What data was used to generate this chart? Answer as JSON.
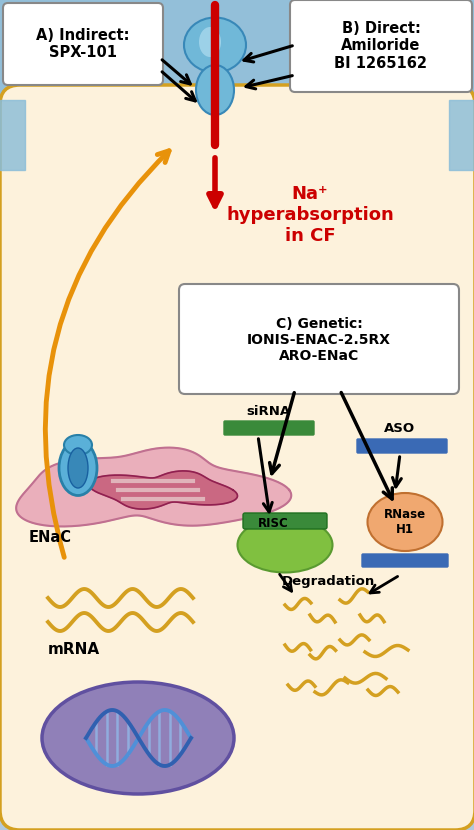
{
  "fig_width": 4.74,
  "fig_height": 8.3,
  "dpi": 100,
  "bg_outer": "#b0c8dc",
  "bg_cell": "#fdf2dc",
  "bg_cell_border": "#d4a020",
  "bg_membrane": "#88bcd8",
  "label_A_text": "A) Indirect:\nSPX-101",
  "label_B_text": "B) Direct:\nAmiloride\nBI 1265162",
  "label_C_text": "C) Genetic:\nIONIS-ENAC-2.5RX\nARO-ENaC",
  "na_text": "Na⁺\nhyperabsorption\nin CF",
  "na_color": "#cc0000",
  "enac_label": "ENaC",
  "mrna_label": "mRNA",
  "sirna_label": "siRNA",
  "aso_label": "ASO",
  "risc_label": "RISC",
  "degradation_label": "Degradation",
  "rnase_label": "RNase\nH1",
  "arrow_red": "#cc0000",
  "arrow_orange": "#e8920a",
  "siRNA_color": "#3a8a3a",
  "ASO_color": "#3a6ab5",
  "RISC_fill": "#a8d870",
  "RISC_oval": "#80c040",
  "RNase_fill": "#f0a870",
  "nucleus_fill": "#9080b8",
  "nucleus_border": "#6050a0",
  "DNA_color1": "#5090d8",
  "DNA_color2": "#3060b0",
  "enac_outer_color": "#e8a8b8",
  "enac_inner_color": "#c05070",
  "enac_channel_color": "#5ab0d8",
  "mRNA_wave_color": "#d4a020",
  "white_line": "#f0e8e0"
}
